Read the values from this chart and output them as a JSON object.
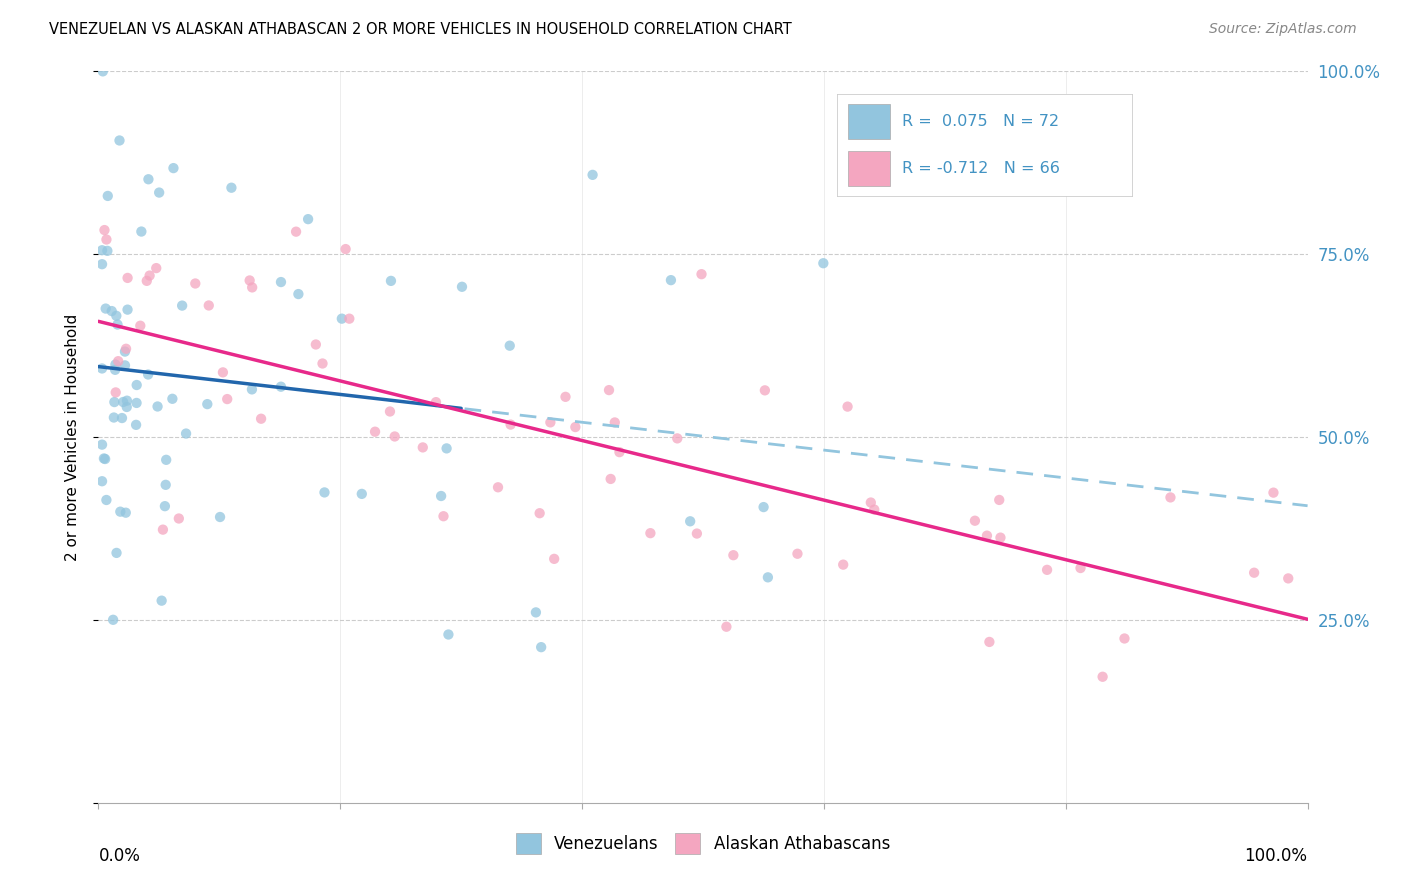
{
  "title": "VENEZUELAN VS ALASKAN ATHABASCAN 2 OR MORE VEHICLES IN HOUSEHOLD CORRELATION CHART",
  "source": "Source: ZipAtlas.com",
  "ylabel": "2 or more Vehicles in Household",
  "R1": 0.075,
  "N1": 72,
  "R2": -0.712,
  "N2": 66,
  "color_blue": "#92c5de",
  "color_pink": "#f4a6c0",
  "color_line_blue": "#2166ac",
  "color_line_pink": "#e7298a",
  "color_dashed": "#92c5de",
  "color_tick": "#4393c3",
  "background": "#ffffff",
  "grid_color": "#cccccc",
  "seed1": 77,
  "seed2": 33
}
